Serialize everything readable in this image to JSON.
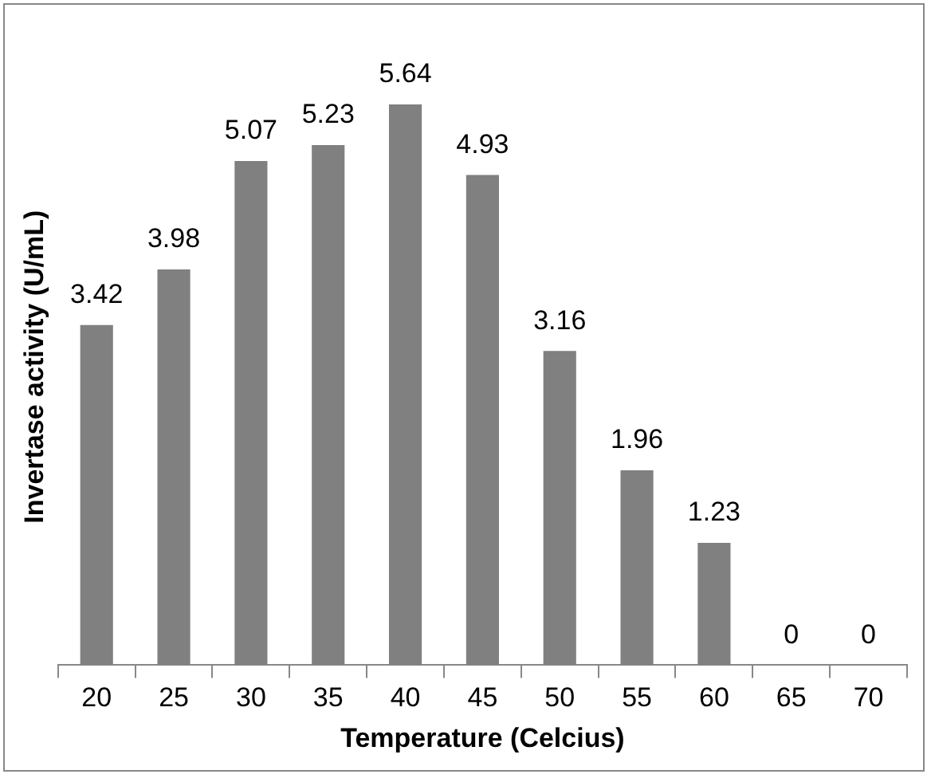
{
  "chart_data": {
    "type": "bar",
    "xlabel": "Temperature (Celcius)",
    "ylabel": "Invertase activity (U/mL)",
    "categories": [
      "20",
      "25",
      "30",
      "35",
      "40",
      "45",
      "50",
      "55",
      "60",
      "65",
      "70"
    ],
    "values": [
      3.42,
      3.98,
      5.07,
      5.23,
      5.64,
      4.93,
      3.16,
      1.96,
      1.23,
      0,
      0
    ],
    "color": "#808080",
    "data_labels": true,
    "grid": false,
    "legend": false
  }
}
